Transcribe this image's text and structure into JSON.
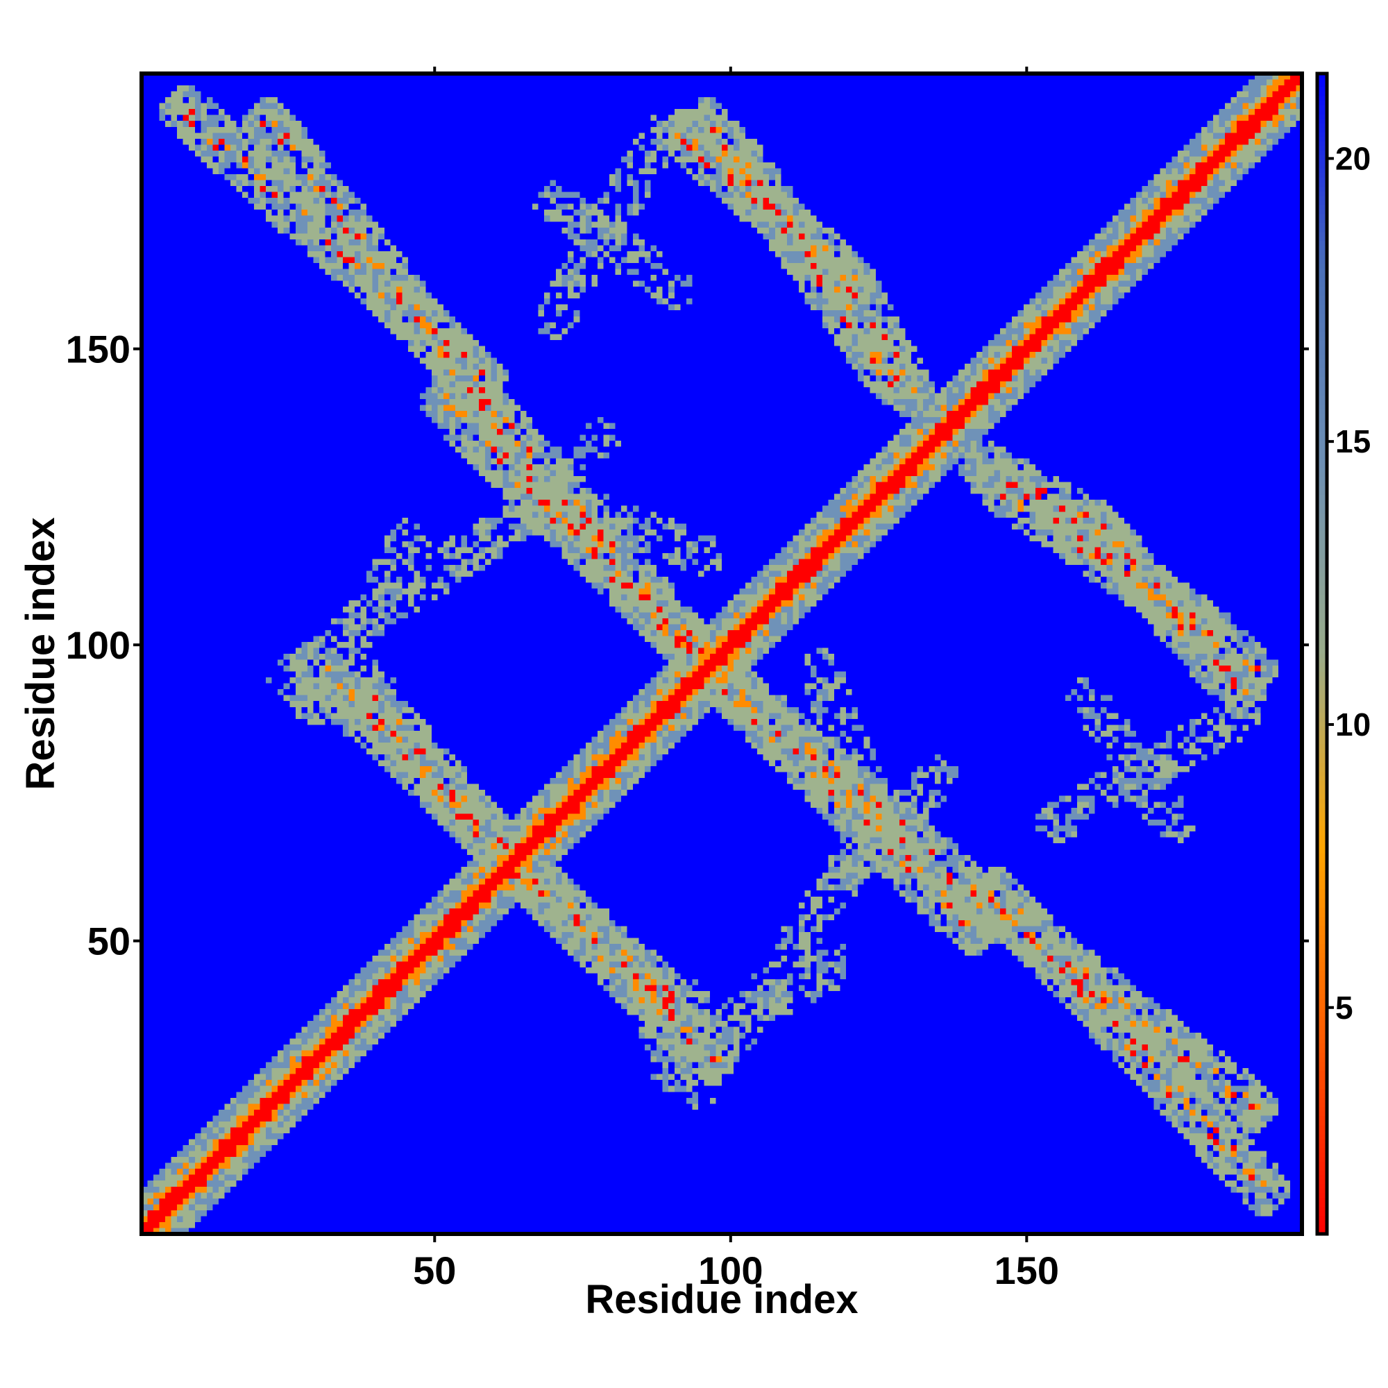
{
  "chart_data": {
    "type": "heatmap",
    "title": "",
    "xlabel": "Residue index",
    "ylabel": "Residue index",
    "xlim": [
      1,
      196
    ],
    "ylim": [
      1,
      196
    ],
    "xticks": [
      50,
      100,
      150
    ],
    "yticks": [
      50,
      100,
      150
    ],
    "x_tick_labels": [
      "50",
      "100",
      "150"
    ],
    "y_tick_labels": [
      "50",
      "100",
      "150"
    ],
    "symmetric": true,
    "colorbar": {
      "range": [
        1,
        21.5
      ],
      "ticks": [
        5,
        10,
        15,
        20
      ],
      "tick_labels": [
        "5",
        "10",
        "15",
        "20"
      ],
      "colors": [
        "#ff0000",
        "#ff5a00",
        "#ffa500",
        "#9aac8a",
        "#6d8fb4",
        "#4a6fb8",
        "#0000ff"
      ]
    },
    "value_colors": {
      "near": "#ff0000",
      "mid_near": "#ff8c00",
      "mid": "#9fb38e",
      "far_contact": "#6f92b8",
      "background": "#0000ff"
    },
    "diagonal_band": {
      "from": [
        1,
        1
      ],
      "to": [
        196,
        196
      ],
      "half_width_residues": 7
    },
    "contact_bands": [
      {
        "from": [
          8,
          190
        ],
        "to": [
          58,
          145
        ]
      },
      {
        "from": [
          52,
          141
        ],
        "to": [
          93,
          99
        ]
      },
      {
        "from": [
          30,
          97
        ],
        "to": [
          60,
          66
        ]
      },
      {
        "from": [
          60,
          66
        ],
        "to": [
          90,
          40
        ]
      },
      {
        "from": [
          98,
          95
        ],
        "to": [
          140,
          59
        ]
      },
      {
        "from": [
          140,
          59
        ],
        "to": [
          188,
          22
        ]
      },
      {
        "from": [
          92,
          186
        ],
        "to": [
          120,
          162
        ]
      },
      {
        "from": [
          120,
          162
        ],
        "to": [
          130,
          143
        ]
      },
      {
        "from": [
          145,
          127
        ],
        "to": [
          180,
          103
        ]
      },
      {
        "from": [
          180,
          103
        ],
        "to": [
          188,
          96
        ]
      }
    ],
    "sparse_arms": [
      {
        "from": [
          88,
          186
        ],
        "to": [
          70,
          155
        ]
      },
      {
        "from": [
          96,
          115
        ],
        "to": [
          70,
          125
        ]
      },
      {
        "from": [
          70,
          125
        ],
        "to": [
          35,
          102
        ]
      },
      {
        "from": [
          118,
          46
        ],
        "to": [
          100,
          36
        ]
      },
      {
        "from": [
          135,
          78
        ],
        "to": [
          120,
          62
        ]
      },
      {
        "from": [
          160,
          91
        ],
        "to": [
          175,
          70
        ]
      },
      {
        "from": [
          88,
          35
        ],
        "to": [
          95,
          25
        ]
      },
      {
        "from": [
          40,
          94
        ],
        "to": [
          28,
          90
        ]
      }
    ]
  }
}
